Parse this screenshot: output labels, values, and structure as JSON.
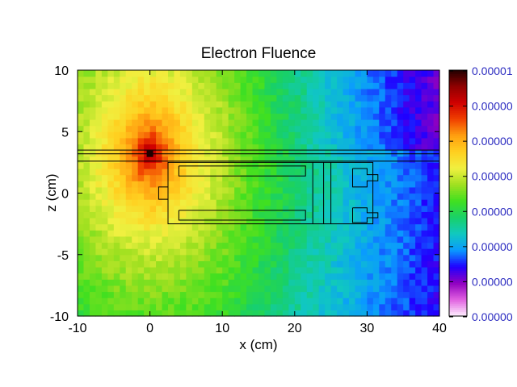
{
  "chart_data": {
    "type": "heatmap",
    "title": "Electron Fluence",
    "xlabel": "x (cm)",
    "ylabel": "z (cm)",
    "xlim": [
      -10,
      40
    ],
    "ylim": [
      -10,
      10
    ],
    "x_ticks": [
      "-10",
      "0",
      "10",
      "20",
      "30",
      "40"
    ],
    "y_ticks": [
      "10",
      "5",
      "0",
      "-5",
      "-10"
    ],
    "colorbar": {
      "tick_labels": [
        "0.00001",
        "0.00000",
        "0.00000",
        "0.00000",
        "0.00000",
        "0.00000",
        "0.00000",
        "0.00000"
      ],
      "label_color": "#2b2bc0"
    },
    "colormap": [
      "#fff0ff",
      "#e060e0",
      "#9000c0",
      "#2000ff",
      "#0a9aff",
      "#10c8c0",
      "#18d068",
      "#40e020",
      "#a0e020",
      "#f0f040",
      "#ffd020",
      "#ffa010",
      "#f04000",
      "#d00000",
      "#900000",
      "#200000"
    ],
    "source": {
      "x": 0,
      "z": 3.2
    },
    "geometry_outlines": {
      "slab_lines_z": [
        3.5,
        3.2,
        2.6
      ],
      "outer_body": [
        [
          2.5,
          -2.5
        ],
        [
          2.5,
          0.5
        ],
        [
          1.2,
          0.5
        ],
        [
          1.2,
          -0.5
        ],
        [
          2.5,
          -0.5
        ],
        [
          2.5,
          -2.5
        ],
        [
          30.8,
          -2.5
        ],
        [
          30.8,
          2.5
        ],
        [
          2.5,
          2.5
        ],
        [
          2.5,
          0.5
        ]
      ],
      "inner_tube_upper": [
        [
          4,
          2.2
        ],
        [
          21.5,
          2.2
        ],
        [
          21.5,
          1.4
        ],
        [
          4,
          1.4
        ],
        [
          4,
          2.2
        ]
      ],
      "inner_tube_lower": [
        [
          4,
          -1.4
        ],
        [
          21.5,
          -1.4
        ],
        [
          21.5,
          -2.2
        ],
        [
          4,
          -2.2
        ],
        [
          4,
          -1.4
        ]
      ],
      "separator_a": [
        [
          22.5,
          2.5
        ],
        [
          22.5,
          -2.5
        ]
      ],
      "separator_b": [
        [
          24,
          2.5
        ],
        [
          24,
          -2.5
        ]
      ],
      "separator_c": [
        [
          25,
          2.5
        ],
        [
          25,
          -2.5
        ]
      ],
      "end_cap_upper": [
        [
          28,
          2.0
        ],
        [
          30,
          2.0
        ],
        [
          30,
          1.5
        ],
        [
          31.5,
          1.5
        ],
        [
          31.5,
          1.0
        ],
        [
          30,
          1.0
        ],
        [
          30,
          0.5
        ],
        [
          28,
          0.5
        ],
        [
          28,
          2.0
        ]
      ],
      "end_cap_lower": [
        [
          28,
          -1.2
        ],
        [
          30,
          -1.2
        ],
        [
          30,
          -1.6
        ],
        [
          31.5,
          -1.6
        ],
        [
          31.5,
          -2.0
        ],
        [
          30,
          -2.0
        ],
        [
          30,
          -2.4
        ],
        [
          28,
          -2.4
        ],
        [
          28,
          -1.2
        ]
      ]
    }
  }
}
